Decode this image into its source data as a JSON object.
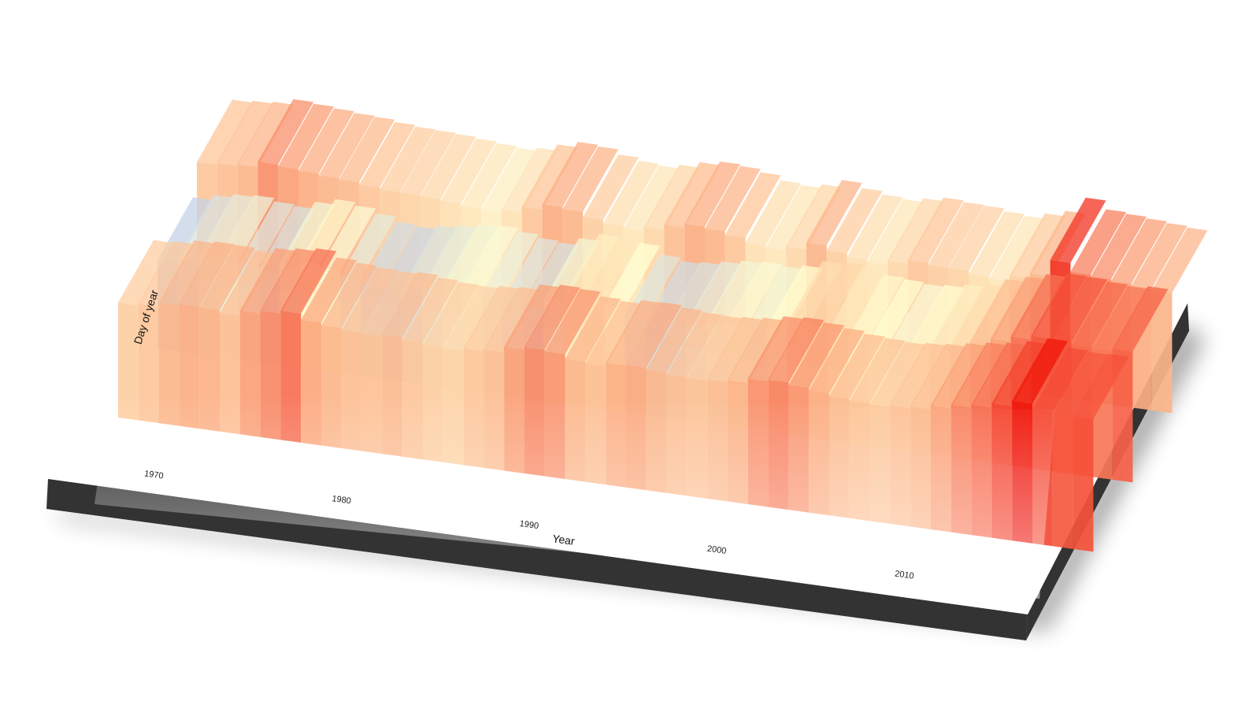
{
  "chart_data": {
    "type": "heatmap",
    "style": "3d-rendered-surface",
    "xlabel": "Year",
    "ylabel": "Day of year",
    "x_ticks": [
      1970,
      1980,
      1990,
      2000,
      2010
    ],
    "xlim": [
      1968,
      2016
    ],
    "row_bands": [
      "back",
      "middle",
      "front"
    ],
    "years": [
      1968,
      1969,
      1970,
      1971,
      1972,
      1973,
      1974,
      1975,
      1976,
      1977,
      1978,
      1979,
      1980,
      1981,
      1982,
      1983,
      1984,
      1985,
      1986,
      1987,
      1988,
      1989,
      1990,
      1991,
      1992,
      1993,
      1994,
      1995,
      1996,
      1997,
      1998,
      1999,
      2000,
      2001,
      2002,
      2003,
      2004,
      2005,
      2006,
      2007,
      2008,
      2009,
      2010,
      2011,
      2012,
      2013,
      2014,
      2015
    ],
    "z": [
      [
        0.3,
        0.35,
        0.45,
        0.5,
        0.48,
        0.4,
        0.55,
        0.62,
        0.7,
        0.52,
        0.45,
        0.4,
        0.38,
        0.42,
        0.35,
        0.3,
        0.28,
        0.35,
        0.4,
        0.55,
        0.62,
        0.58,
        0.45,
        0.4,
        0.5,
        0.52,
        0.45,
        0.4,
        0.38,
        0.42,
        0.48,
        0.6,
        0.65,
        0.58,
        0.5,
        0.42,
        0.38,
        0.35,
        0.4,
        0.45,
        0.55,
        0.65,
        0.72,
        0.85,
        1.0,
        0.82,
        0.78,
        0.8
      ],
      [
        -0.45,
        -0.3,
        -0.2,
        -0.15,
        -0.25,
        -0.3,
        -0.1,
        0.05,
        -0.05,
        -0.2,
        -0.35,
        -0.4,
        -0.3,
        -0.2,
        -0.1,
        -0.05,
        -0.15,
        -0.25,
        -0.3,
        -0.1,
        0.1,
        0.15,
        0.0,
        -0.25,
        -0.35,
        -0.3,
        -0.2,
        -0.1,
        -0.05,
        -0.1,
        0.0,
        0.2,
        0.25,
        0.15,
        0.05,
        0.0,
        -0.05,
        0.0,
        0.1,
        0.2,
        0.4,
        0.55,
        0.7,
        0.8,
        0.78,
        0.72,
        0.68,
        0.75
      ],
      [
        0.35,
        0.4,
        0.45,
        0.6,
        0.55,
        0.5,
        0.45,
        0.42,
        0.35,
        0.3,
        0.28,
        0.25,
        0.2,
        0.15,
        0.1,
        0.18,
        0.35,
        0.5,
        0.45,
        0.3,
        0.2,
        0.15,
        0.25,
        0.4,
        0.5,
        0.45,
        0.35,
        0.2,
        0.15,
        0.25,
        0.45,
        0.3,
        0.2,
        0.15,
        0.25,
        0.35,
        0.3,
        0.28,
        0.2,
        0.15,
        0.3,
        0.45,
        0.9,
        0.65,
        0.6,
        0.55,
        0.5,
        0.45
      ]
    ]
  }
}
